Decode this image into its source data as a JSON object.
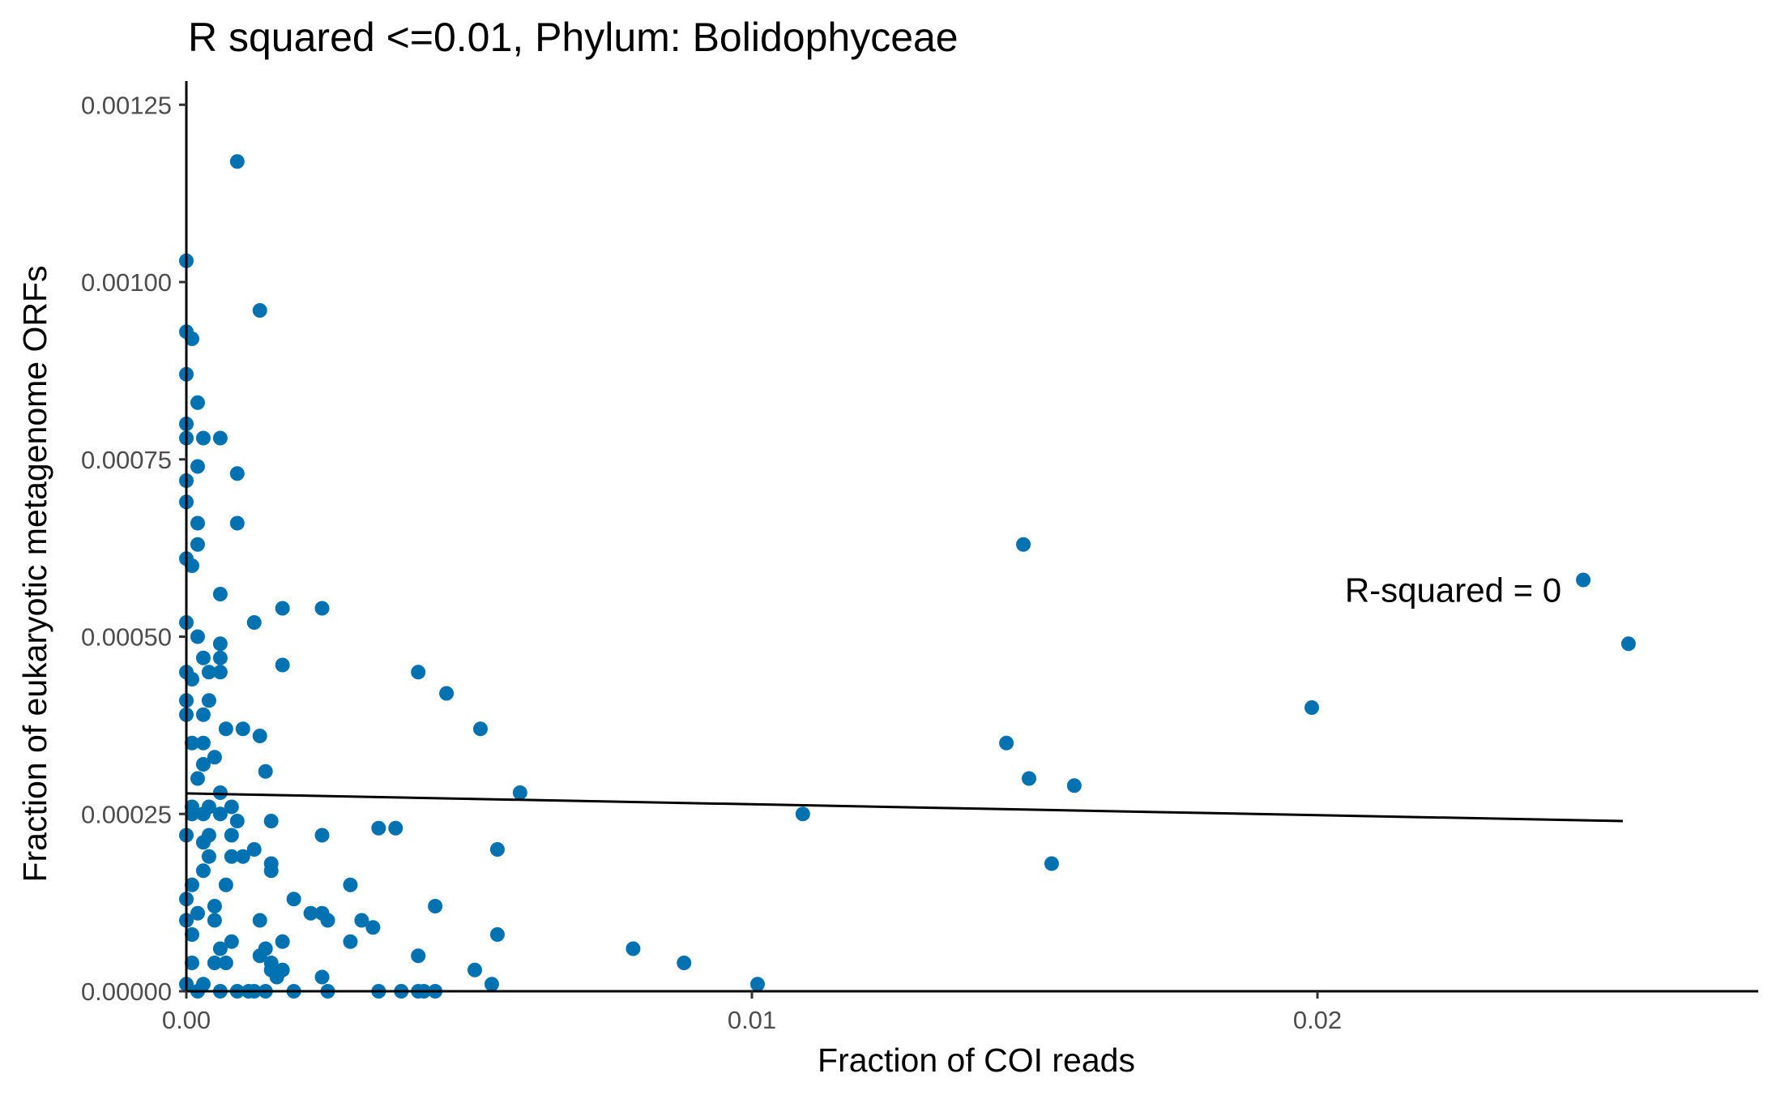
{
  "chart_data": {
    "type": "scatter",
    "title": "R squared <=0.01, Phylum:  Bolidophyceae",
    "xlabel": "Fraction of COI reads",
    "ylabel": "Fraction of eukaryotic metagenome ORFs",
    "xlim": [
      0,
      0.028
    ],
    "ylim": [
      0,
      0.0013
    ],
    "x_ticks": [
      0,
      0.01,
      0.02
    ],
    "x_tick_labels": [
      "0.00",
      "0.01",
      "0.02"
    ],
    "y_ticks": [
      0,
      0.00025,
      0.0005,
      0.00075,
      0.001,
      0.00125
    ],
    "y_tick_labels": [
      "0.00000",
      "0.00025",
      "0.00050",
      "0.00075",
      "0.00100",
      "0.00125"
    ],
    "grid": false,
    "point_color": "#0072B2",
    "line_color": "#000000",
    "annotation": {
      "text": "R-squared =  0",
      "x": 0.0224,
      "y": 0.000565
    },
    "regression_line": {
      "x": [
        0,
        0.0254
      ],
      "y": [
        0.000279,
        0.00024
      ]
    },
    "points": [
      [
        0.0009,
        0.00117
      ],
      [
        0.0,
        0.00103
      ],
      [
        0.0013,
        0.00096
      ],
      [
        0.0,
        0.00093
      ],
      [
        0.0001,
        0.00092
      ],
      [
        0.0,
        0.00087
      ],
      [
        0.0002,
        0.00083
      ],
      [
        0.0,
        0.0008
      ],
      [
        0.0,
        0.00078
      ],
      [
        0.0003,
        0.00078
      ],
      [
        0.0006,
        0.00078
      ],
      [
        0.0002,
        0.00074
      ],
      [
        0.0,
        0.00072
      ],
      [
        0.0009,
        0.00073
      ],
      [
        0.0,
        0.00069
      ],
      [
        0.0002,
        0.00066
      ],
      [
        0.0009,
        0.00066
      ],
      [
        0.0002,
        0.00063
      ],
      [
        0.0,
        0.00061
      ],
      [
        0.0001,
        0.0006
      ],
      [
        0.0006,
        0.00056
      ],
      [
        0.0,
        0.00052
      ],
      [
        0.0012,
        0.00052
      ],
      [
        0.0017,
        0.00054
      ],
      [
        0.0024,
        0.00054
      ],
      [
        0.0002,
        0.0005
      ],
      [
        0.0006,
        0.00049
      ],
      [
        0.0003,
        0.00047
      ],
      [
        0.0006,
        0.00047
      ],
      [
        0.0017,
        0.00046
      ],
      [
        0.0,
        0.00045
      ],
      [
        0.0001,
        0.00044
      ],
      [
        0.0004,
        0.00045
      ],
      [
        0.0006,
        0.00045
      ],
      [
        0.0,
        0.00041
      ],
      [
        0.0004,
        0.00041
      ],
      [
        0.0,
        0.00039
      ],
      [
        0.0003,
        0.00039
      ],
      [
        0.0007,
        0.00037
      ],
      [
        0.001,
        0.00037
      ],
      [
        0.0001,
        0.00035
      ],
      [
        0.0003,
        0.00035
      ],
      [
        0.0013,
        0.00036
      ],
      [
        0.0005,
        0.00033
      ],
      [
        0.0003,
        0.00032
      ],
      [
        0.0014,
        0.00031
      ],
      [
        0.0002,
        0.0003
      ],
      [
        0.0006,
        0.00028
      ],
      [
        0.0001,
        0.00026
      ],
      [
        0.0004,
        0.00026
      ],
      [
        0.0008,
        0.00026
      ],
      [
        0.0001,
        0.00025
      ],
      [
        0.0003,
        0.00025
      ],
      [
        0.0006,
        0.00025
      ],
      [
        0.0009,
        0.00024
      ],
      [
        0.0015,
        0.00024
      ],
      [
        0.0,
        0.00022
      ],
      [
        0.0004,
        0.00022
      ],
      [
        0.0008,
        0.00022
      ],
      [
        0.0003,
        0.00021
      ],
      [
        0.0012,
        0.0002
      ],
      [
        0.0004,
        0.00019
      ],
      [
        0.0008,
        0.00019
      ],
      [
        0.001,
        0.00019
      ],
      [
        0.0015,
        0.00018
      ],
      [
        0.0003,
        0.00017
      ],
      [
        0.0015,
        0.00017
      ],
      [
        0.0001,
        0.00015
      ],
      [
        0.0007,
        0.00015
      ],
      [
        0.0019,
        0.00013
      ],
      [
        0.0,
        0.00013
      ],
      [
        0.0005,
        0.00012
      ],
      [
        0.0002,
        0.00011
      ],
      [
        0.0022,
        0.00011
      ],
      [
        0.0024,
        0.00011
      ],
      [
        0.0005,
        0.0001
      ],
      [
        0.0013,
        0.0001
      ],
      [
        0.0025,
        0.0001
      ],
      [
        0.0,
        0.0001
      ],
      [
        0.0001,
        8e-05
      ],
      [
        0.0008,
        7e-05
      ],
      [
        0.0017,
        7e-05
      ],
      [
        0.0006,
        6e-05
      ],
      [
        0.0014,
        6e-05
      ],
      [
        0.0013,
        5e-05
      ],
      [
        0.0005,
        4e-05
      ],
      [
        0.0007,
        4e-05
      ],
      [
        0.0015,
        4e-05
      ],
      [
        0.0001,
        4e-05
      ],
      [
        0.0015,
        3e-05
      ],
      [
        0.0017,
        3e-05
      ],
      [
        0.0016,
        2e-05
      ],
      [
        0.0003,
        1e-05
      ],
      [
        0.0024,
        2e-05
      ],
      [
        0.0,
        1e-05
      ],
      [
        0.0002,
        0.0
      ],
      [
        0.0006,
        0.0
      ],
      [
        0.0009,
        0.0
      ],
      [
        0.0011,
        0.0
      ],
      [
        0.0012,
        0.0
      ],
      [
        0.0014,
        0.0
      ],
      [
        0.0019,
        0.0
      ],
      [
        0.0025,
        0.0
      ],
      [
        0.0034,
        0.0
      ],
      [
        0.0038,
        0.0
      ],
      [
        0.0041,
        0.0
      ],
      [
        0.0042,
        0.0
      ],
      [
        0.0044,
        0.0
      ],
      [
        0.0029,
        0.00015
      ],
      [
        0.0031,
        0.0001
      ],
      [
        0.0033,
        9e-05
      ],
      [
        0.0029,
        7e-05
      ],
      [
        0.0041,
        0.00045
      ],
      [
        0.0046,
        0.00042
      ],
      [
        0.0052,
        0.00037
      ],
      [
        0.0034,
        0.00023
      ],
      [
        0.0037,
        0.00023
      ],
      [
        0.0024,
        0.00022
      ],
      [
        0.0055,
        0.0002
      ],
      [
        0.0059,
        0.00028
      ],
      [
        0.0044,
        0.00012
      ],
      [
        0.0055,
        8e-05
      ],
      [
        0.0041,
        5e-05
      ],
      [
        0.0051,
        3e-05
      ],
      [
        0.0054,
        1e-05
      ],
      [
        0.0079,
        6e-05
      ],
      [
        0.0088,
        4e-05
      ],
      [
        0.0101,
        1e-05
      ],
      [
        0.0109,
        0.00025
      ],
      [
        0.0148,
        0.00063
      ],
      [
        0.0145,
        0.00035
      ],
      [
        0.0149,
        0.0003
      ],
      [
        0.0157,
        0.00029
      ],
      [
        0.0153,
        0.00018
      ],
      [
        0.0199,
        0.0004
      ],
      [
        0.0247,
        0.00058
      ],
      [
        0.0255,
        0.00049
      ]
    ]
  }
}
